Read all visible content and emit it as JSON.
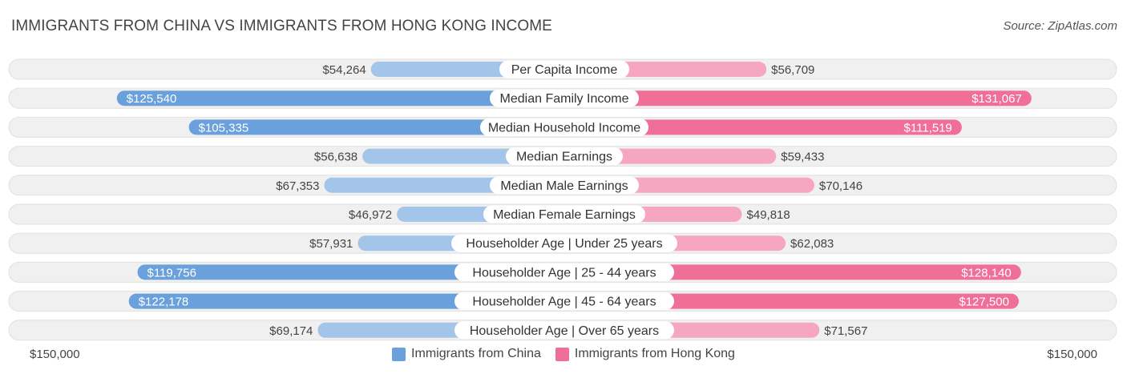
{
  "title": "IMMIGRANTS FROM CHINA VS IMMIGRANTS FROM HONG KONG INCOME",
  "source": "Source: ZipAtlas.com",
  "axis": {
    "left_label": "$150,000",
    "right_label": "$150,000"
  },
  "colors": {
    "china_strong": "#6aa0dc",
    "china_light": "#a4c5ea",
    "hk_strong": "#f06f99",
    "hk_light": "#f6a6c1",
    "track": "#f0f0f0"
  },
  "legend": [
    {
      "label": "Immigrants from China",
      "color": "#6aa0dc"
    },
    {
      "label": "Immigrants from Hong Kong",
      "color": "#f06f99"
    }
  ],
  "chart_data": {
    "type": "bar",
    "orientation": "horizontal-diverging",
    "title": "IMMIGRANTS FROM CHINA VS IMMIGRANTS FROM HONG KONG INCOME",
    "xlim": [
      -150000,
      150000
    ],
    "categories": [
      "Per Capita Income",
      "Median Family Income",
      "Median Household Income",
      "Median Earnings",
      "Median Male Earnings",
      "Median Female Earnings",
      "Householder Age | Under 25 years",
      "Householder Age | 25 - 44 years",
      "Householder Age | 45 - 64 years",
      "Householder Age | Over 65 years"
    ],
    "series": [
      {
        "name": "Immigrants from China",
        "side": "left",
        "values": [
          54264,
          125540,
          105335,
          56638,
          67353,
          46972,
          57931,
          119756,
          122178,
          69174
        ],
        "labels": [
          "$54,264",
          "$125,540",
          "$105,335",
          "$56,638",
          "$67,353",
          "$46,972",
          "$57,931",
          "$119,756",
          "$122,178",
          "$69,174"
        ]
      },
      {
        "name": "Immigrants from Hong Kong",
        "side": "right",
        "values": [
          56709,
          131067,
          111519,
          59433,
          70146,
          49818,
          62083,
          128140,
          127500,
          71567
        ],
        "labels": [
          "$56,709",
          "$131,067",
          "$111,519",
          "$59,433",
          "$70,146",
          "$49,818",
          "$62,083",
          "$128,140",
          "$127,500",
          "$71,567"
        ]
      }
    ],
    "legend_position": "bottom-center"
  }
}
